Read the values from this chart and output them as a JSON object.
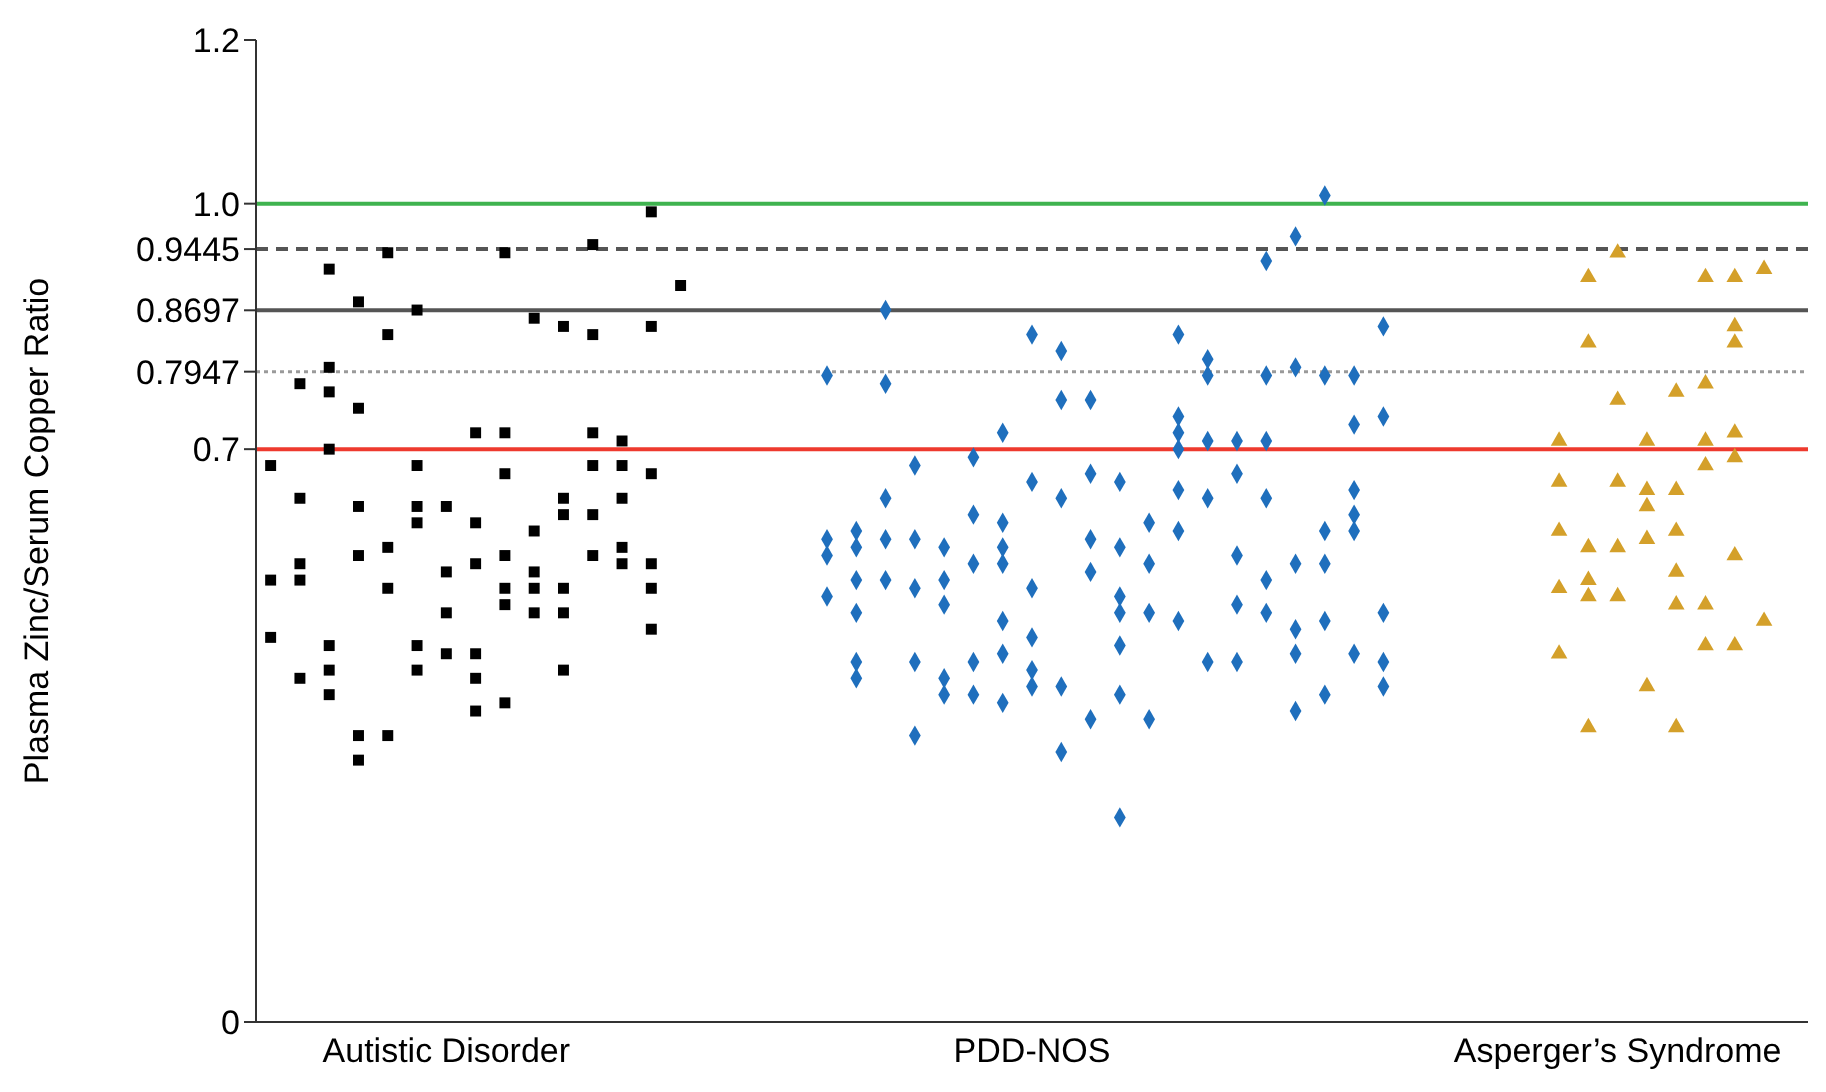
{
  "chart_data": {
    "type": "scatter",
    "ylabel": "Plasma Zinc/Serum Copper Ratio",
    "categories": [
      null,
      null,
      null,
      null,
      null,
      null,
      "Autistic Disorder",
      null,
      null,
      null,
      null,
      null,
      null,
      null,
      null,
      null,
      null,
      null,
      null,
      null,
      null,
      null,
      null,
      null,
      null,
      null,
      "PDD-NOS",
      null,
      null,
      null,
      null,
      null,
      null,
      null,
      null,
      null,
      null,
      null,
      null,
      null,
      null,
      null,
      null,
      null,
      null,
      null,
      "Asperger’s Syndrome",
      null,
      null,
      null,
      null,
      null,
      null
    ],
    "ylim": [
      0,
      1.2
    ],
    "yticks": [
      0,
      0.7,
      0.7947,
      0.8697,
      0.9445,
      {
        "value": 1,
        "label": "1.0"
      },
      1.2
    ],
    "grid": false,
    "legend": false,
    "ref_lines": [
      {
        "axis": "y",
        "value": 1,
        "color": "#3fb34f",
        "line_style": "solid"
      },
      {
        "axis": "y",
        "value": 0.9445,
        "color": "#555555",
        "line_style": "dashed"
      },
      {
        "axis": "y",
        "value": 0.8697,
        "color": "#555555",
        "line_style": "solid"
      },
      {
        "axis": "y",
        "value": 0.7947,
        "color": "#9a9a9a",
        "line_style": "dotted"
      },
      {
        "axis": "y",
        "value": 0.7,
        "color": "#ee3a2e",
        "line_style": "solid"
      }
    ],
    "series": [
      {
        "color": "#000000",
        "marker": "square",
        "values": [
          0.68,
          0.78,
          0.92,
          0.88,
          0.94,
          0.87,
          0.63,
          0.72,
          0.94,
          0.86,
          0.85,
          0.95,
          0.71,
          0.99,
          0.9,
          null,
          null,
          null,
          null,
          null,
          null,
          null,
          null,
          null,
          null,
          null,
          null,
          null,
          null,
          null,
          null,
          null,
          null,
          null,
          null,
          null,
          null,
          null,
          null,
          null,
          null,
          null,
          null,
          null,
          null,
          null,
          null,
          null,
          null,
          null,
          null,
          null,
          null
        ]
      },
      {
        "color": "#000000",
        "marker": "square",
        "values": [
          0.54,
          0.64,
          0.8,
          0.75,
          0.84,
          0.68,
          0.55,
          0.61,
          0.72,
          0.6,
          0.64,
          0.84,
          0.68,
          0.85,
          null,
          null,
          null,
          null,
          null,
          null,
          null,
          null,
          null,
          null,
          null,
          null,
          null,
          null,
          null,
          null,
          null,
          null,
          null,
          null,
          null,
          null,
          null,
          null,
          null,
          null,
          null,
          null,
          null,
          null,
          null,
          null,
          null,
          null,
          null,
          null,
          null,
          null,
          null
        ]
      },
      {
        "color": "#000000",
        "marker": "square",
        "values": [
          0.47,
          0.56,
          0.77,
          0.63,
          0.58,
          0.63,
          0.5,
          0.56,
          0.67,
          0.55,
          0.62,
          0.72,
          0.64,
          0.67,
          null,
          null,
          null,
          null,
          null,
          null,
          null,
          null,
          null,
          null,
          null,
          null,
          null,
          null,
          null,
          null,
          null,
          null,
          null,
          null,
          null,
          null,
          null,
          null,
          null,
          null,
          null,
          null,
          null,
          null,
          null,
          null,
          null,
          null,
          null,
          null,
          null,
          null,
          null
        ]
      },
      {
        "color": "#000000",
        "marker": "square",
        "values": [
          null,
          0.54,
          0.7,
          0.57,
          0.53,
          0.61,
          0.45,
          0.45,
          0.57,
          0.53,
          0.53,
          0.68,
          0.58,
          0.56,
          null,
          null,
          null,
          null,
          null,
          null,
          null,
          null,
          null,
          null,
          null,
          null,
          null,
          null,
          null,
          null,
          null,
          null,
          null,
          null,
          null,
          null,
          null,
          null,
          null,
          null,
          null,
          null,
          null,
          null,
          null,
          null,
          null,
          null,
          null,
          null,
          null,
          null,
          null
        ]
      },
      {
        "color": "#000000",
        "marker": "square",
        "values": [
          null,
          0.42,
          0.46,
          0.35,
          0.35,
          0.46,
          null,
          0.42,
          0.53,
          0.5,
          0.5,
          0.62,
          0.56,
          0.53,
          null,
          null,
          null,
          null,
          null,
          null,
          null,
          null,
          null,
          null,
          null,
          null,
          null,
          null,
          null,
          null,
          null,
          null,
          null,
          null,
          null,
          null,
          null,
          null,
          null,
          null,
          null,
          null,
          null,
          null,
          null,
          null,
          null,
          null,
          null,
          null,
          null,
          null,
          null
        ]
      },
      {
        "color": "#000000",
        "marker": "square",
        "values": [
          null,
          null,
          0.43,
          0.32,
          null,
          0.43,
          null,
          0.38,
          0.51,
          null,
          0.43,
          0.57,
          null,
          0.48,
          null,
          null,
          null,
          null,
          null,
          null,
          null,
          null,
          null,
          null,
          null,
          null,
          null,
          null,
          null,
          null,
          null,
          null,
          null,
          null,
          null,
          null,
          null,
          null,
          null,
          null,
          null,
          null,
          null,
          null,
          null,
          null,
          null,
          null,
          null,
          null,
          null,
          null,
          null
        ]
      },
      {
        "color": "#000000",
        "marker": "square",
        "values": [
          null,
          null,
          0.4,
          null,
          null,
          null,
          null,
          null,
          0.39,
          null,
          null,
          null,
          null,
          null,
          null,
          null,
          null,
          null,
          null,
          null,
          null,
          null,
          null,
          null,
          null,
          null,
          null,
          null,
          null,
          null,
          null,
          null,
          null,
          null,
          null,
          null,
          null,
          null,
          null,
          null,
          null,
          null,
          null,
          null,
          null,
          null,
          null,
          null,
          null,
          null,
          null,
          null,
          null
        ]
      },
      {
        "color": "#1f6fbd",
        "marker": "diamond",
        "values": [
          null,
          null,
          null,
          null,
          null,
          null,
          null,
          null,
          null,
          null,
          null,
          null,
          null,
          null,
          null,
          null,
          null,
          null,
          null,
          0.79,
          0.6,
          0.87,
          0.68,
          0.58,
          0.69,
          0.72,
          0.84,
          0.82,
          0.76,
          0.66,
          0.61,
          0.84,
          0.81,
          0.71,
          0.93,
          0.96,
          1.01,
          0.79,
          0.85,
          null,
          null,
          null,
          null,
          null,
          null,
          null,
          null,
          null,
          null,
          null,
          null,
          null,
          null
        ]
      },
      {
        "color": "#1f6fbd",
        "marker": "diamond",
        "values": [
          null,
          null,
          null,
          null,
          null,
          null,
          null,
          null,
          null,
          null,
          null,
          null,
          null,
          null,
          null,
          null,
          null,
          null,
          null,
          0.59,
          0.58,
          0.78,
          0.59,
          0.54,
          0.62,
          0.61,
          0.66,
          0.76,
          0.67,
          0.58,
          0.56,
          0.74,
          0.79,
          0.67,
          0.79,
          0.8,
          0.79,
          0.73,
          0.74,
          null,
          null,
          null,
          null,
          null,
          null,
          null,
          null,
          null,
          null,
          null,
          null,
          null,
          null
        ]
      },
      {
        "color": "#1f6fbd",
        "marker": "diamond",
        "values": [
          null,
          null,
          null,
          null,
          null,
          null,
          null,
          null,
          null,
          null,
          null,
          null,
          null,
          null,
          null,
          null,
          null,
          null,
          null,
          0.57,
          0.54,
          0.64,
          0.53,
          0.51,
          0.56,
          0.58,
          0.53,
          0.64,
          0.59,
          0.52,
          0.5,
          0.72,
          0.71,
          0.57,
          0.71,
          0.56,
          0.6,
          0.65,
          0.5,
          null,
          null,
          null,
          null,
          null,
          null,
          null,
          null,
          null,
          null,
          null,
          null,
          null,
          null
        ]
      },
      {
        "color": "#1f6fbd",
        "marker": "diamond",
        "values": [
          null,
          null,
          null,
          null,
          null,
          null,
          null,
          null,
          null,
          null,
          null,
          null,
          null,
          null,
          null,
          null,
          null,
          null,
          null,
          0.52,
          0.5,
          0.59,
          0.44,
          0.42,
          0.44,
          0.56,
          0.47,
          0.41,
          0.55,
          0.5,
          0.37,
          0.7,
          0.64,
          0.51,
          0.64,
          0.48,
          0.56,
          0.62,
          0.44,
          null,
          null,
          null,
          null,
          null,
          null,
          null,
          null,
          null,
          null,
          null,
          null,
          null,
          null
        ]
      },
      {
        "color": "#1f6fbd",
        "marker": "diamond",
        "values": [
          null,
          null,
          null,
          null,
          null,
          null,
          null,
          null,
          null,
          null,
          null,
          null,
          null,
          null,
          null,
          null,
          null,
          null,
          null,
          null,
          0.44,
          0.54,
          0.35,
          0.4,
          0.4,
          0.49,
          0.43,
          0.33,
          0.37,
          0.46,
          null,
          0.65,
          0.44,
          0.44,
          0.54,
          0.45,
          0.49,
          0.6,
          0.41,
          null,
          null,
          null,
          null,
          null,
          null,
          null,
          null,
          null,
          null,
          null,
          null,
          null,
          null
        ]
      },
      {
        "color": "#1f6fbd",
        "marker": "diamond",
        "values": [
          null,
          null,
          null,
          null,
          null,
          null,
          null,
          null,
          null,
          null,
          null,
          null,
          null,
          null,
          null,
          null,
          null,
          null,
          null,
          null,
          0.42,
          null,
          null,
          null,
          null,
          0.45,
          0.41,
          null,
          null,
          0.4,
          null,
          0.6,
          null,
          null,
          0.5,
          0.38,
          0.4,
          0.45,
          null,
          null,
          null,
          null,
          null,
          null,
          null,
          null,
          null,
          null,
          null,
          null,
          null,
          null,
          null
        ]
      },
      {
        "color": "#1f6fbd",
        "marker": "diamond",
        "values": [
          null,
          null,
          null,
          null,
          null,
          null,
          null,
          null,
          null,
          null,
          null,
          null,
          null,
          null,
          null,
          null,
          null,
          null,
          null,
          null,
          null,
          null,
          null,
          null,
          null,
          0.39,
          null,
          null,
          null,
          0.25,
          null,
          0.49,
          null,
          null,
          null,
          null,
          null,
          null,
          null,
          null,
          null,
          null,
          null,
          null,
          null,
          null,
          null,
          null,
          null,
          null,
          null,
          null,
          null
        ]
      },
      {
        "color": "#d4a02a",
        "marker": "triangle",
        "values": [
          null,
          null,
          null,
          null,
          null,
          null,
          null,
          null,
          null,
          null,
          null,
          null,
          null,
          null,
          null,
          null,
          null,
          null,
          null,
          null,
          null,
          null,
          null,
          null,
          null,
          null,
          null,
          null,
          null,
          null,
          null,
          null,
          null,
          null,
          null,
          null,
          null,
          null,
          null,
          null,
          null,
          null,
          null,
          null,
          0.71,
          0.91,
          0.94,
          0.71,
          0.77,
          0.91,
          0.91,
          0.92,
          null
        ]
      },
      {
        "color": "#d4a02a",
        "marker": "triangle",
        "values": [
          null,
          null,
          null,
          null,
          null,
          null,
          null,
          null,
          null,
          null,
          null,
          null,
          null,
          null,
          null,
          null,
          null,
          null,
          null,
          null,
          null,
          null,
          null,
          null,
          null,
          null,
          null,
          null,
          null,
          null,
          null,
          null,
          null,
          null,
          null,
          null,
          null,
          null,
          null,
          null,
          null,
          null,
          null,
          null,
          0.66,
          0.83,
          0.76,
          0.65,
          0.65,
          0.78,
          0.85,
          0.49,
          null
        ]
      },
      {
        "color": "#d4a02a",
        "marker": "triangle",
        "values": [
          null,
          null,
          null,
          null,
          null,
          null,
          null,
          null,
          null,
          null,
          null,
          null,
          null,
          null,
          null,
          null,
          null,
          null,
          null,
          null,
          null,
          null,
          null,
          null,
          null,
          null,
          null,
          null,
          null,
          null,
          null,
          null,
          null,
          null,
          null,
          null,
          null,
          null,
          null,
          null,
          null,
          null,
          null,
          null,
          0.6,
          0.58,
          0.66,
          0.63,
          0.6,
          0.71,
          0.83,
          null,
          null
        ]
      },
      {
        "color": "#d4a02a",
        "marker": "triangle",
        "values": [
          null,
          null,
          null,
          null,
          null,
          null,
          null,
          null,
          null,
          null,
          null,
          null,
          null,
          null,
          null,
          null,
          null,
          null,
          null,
          null,
          null,
          null,
          null,
          null,
          null,
          null,
          null,
          null,
          null,
          null,
          null,
          null,
          null,
          null,
          null,
          null,
          null,
          null,
          null,
          null,
          null,
          null,
          null,
          null,
          0.53,
          0.54,
          0.58,
          0.59,
          0.55,
          0.68,
          0.72,
          null,
          null
        ]
      },
      {
        "color": "#d4a02a",
        "marker": "triangle",
        "values": [
          null,
          null,
          null,
          null,
          null,
          null,
          null,
          null,
          null,
          null,
          null,
          null,
          null,
          null,
          null,
          null,
          null,
          null,
          null,
          null,
          null,
          null,
          null,
          null,
          null,
          null,
          null,
          null,
          null,
          null,
          null,
          null,
          null,
          null,
          null,
          null,
          null,
          null,
          null,
          null,
          null,
          null,
          null,
          null,
          0.45,
          0.52,
          0.52,
          0.41,
          0.51,
          0.51,
          0.69,
          null,
          null
        ]
      },
      {
        "color": "#d4a02a",
        "marker": "triangle",
        "values": [
          null,
          null,
          null,
          null,
          null,
          null,
          null,
          null,
          null,
          null,
          null,
          null,
          null,
          null,
          null,
          null,
          null,
          null,
          null,
          null,
          null,
          null,
          null,
          null,
          null,
          null,
          null,
          null,
          null,
          null,
          null,
          null,
          null,
          null,
          null,
          null,
          null,
          null,
          null,
          null,
          null,
          null,
          null,
          null,
          null,
          0.36,
          null,
          null,
          0.36,
          0.46,
          0.57,
          null,
          null
        ]
      },
      {
        "color": "#d4a02a",
        "marker": "triangle",
        "values": [
          null,
          null,
          null,
          null,
          null,
          null,
          null,
          null,
          null,
          null,
          null,
          null,
          null,
          null,
          null,
          null,
          null,
          null,
          null,
          null,
          null,
          null,
          null,
          null,
          null,
          null,
          null,
          null,
          null,
          null,
          null,
          null,
          null,
          null,
          null,
          null,
          null,
          null,
          null,
          null,
          null,
          null,
          null,
          null,
          null,
          null,
          null,
          null,
          null,
          null,
          0.46,
          null,
          null
        ]
      }
    ]
  }
}
